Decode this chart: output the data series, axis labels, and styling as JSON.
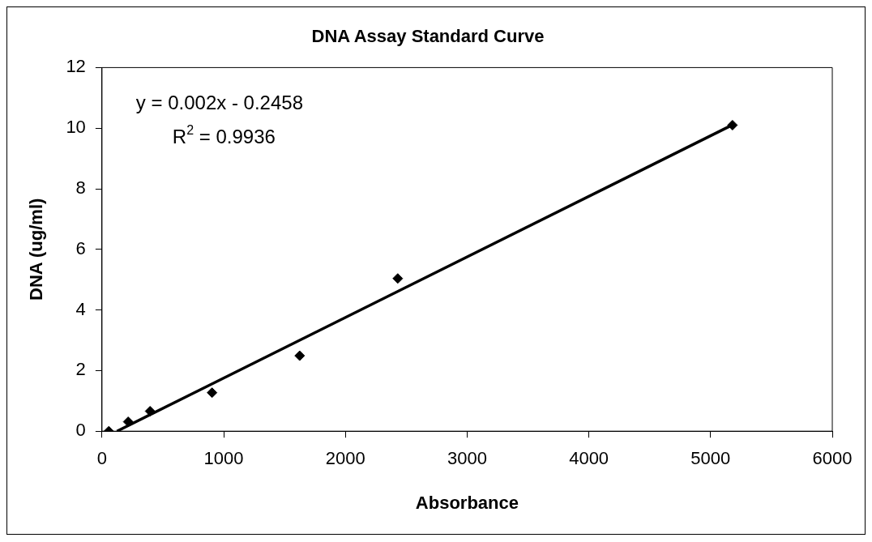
{
  "chart_data": {
    "type": "scatter",
    "title": "DNA Assay Standard Curve",
    "xlabel": "Absorbance",
    "ylabel": "DNA (ug/ml)",
    "x": [
      56,
      215,
      395,
      904,
      1624,
      2430,
      5180
    ],
    "series": [
      {
        "color": "#000000",
        "marker": "diamond",
        "values": [
          0,
          0.31,
          0.66,
          1.27,
          2.49,
          5.04,
          10.1
        ]
      },
      {
        "type": "line",
        "color": "#000000",
        "x": [
          123,
          5180
        ],
        "values": [
          0,
          10.11
        ],
        "marker": "none",
        "line_style": "solid"
      }
    ],
    "annotations": [
      "y = 0.002x - 0.2458",
      "R$^{2}$ = 0.9936"
    ],
    "xlim": [
      0,
      6000
    ],
    "xticks": [
      0,
      1000,
      2000,
      3000,
      4000,
      5000,
      6000
    ],
    "ylim": [
      0,
      12
    ],
    "yticks": [
      0,
      2,
      4,
      6,
      8,
      10,
      12
    ],
    "grid": false,
    "legend": false
  }
}
